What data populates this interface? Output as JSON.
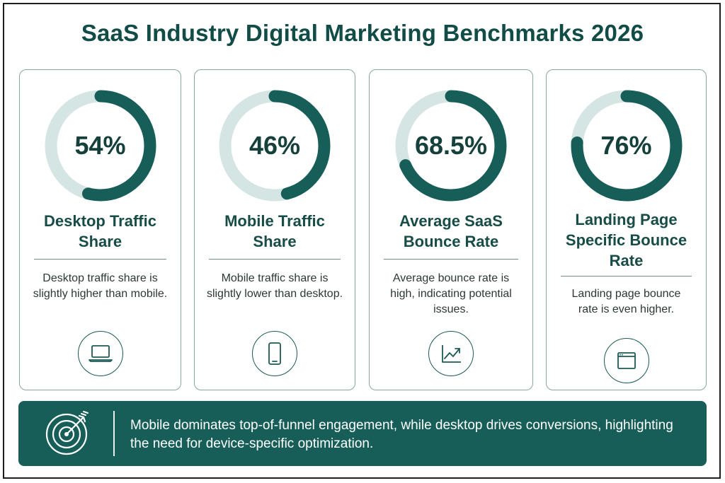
{
  "title": "SaaS Industry Digital Marketing Benchmarks 2026",
  "colors": {
    "accent": "#175e58",
    "track": "#d5e5e3",
    "text_dark": "#114c47"
  },
  "cards": [
    {
      "value_label": "54%",
      "fraction": 0.54,
      "label": "Desktop Traffic Share",
      "description": "Desktop traffic share is slightly higher than mobile.",
      "icon": "laptop-icon"
    },
    {
      "value_label": "46%",
      "fraction": 0.46,
      "label": "Mobile Traffic Share",
      "description": "Mobile traffic share is slightly lower than desktop.",
      "icon": "smartphone-icon"
    },
    {
      "value_label": "68.5%",
      "fraction": 0.685,
      "label": "Average SaaS Bounce Rate",
      "description": "Average bounce rate is high, indicating potential issues.",
      "icon": "trend-up-chart-icon"
    },
    {
      "value_label": "76%",
      "fraction": 0.76,
      "label": "Landing Page Specific Bounce Rate",
      "description": "Landing page bounce rate is even higher.",
      "icon": "browser-window-icon"
    }
  ],
  "banner": {
    "icon": "target-arrow-icon",
    "text": "Mobile dominates top-of-funnel engagement, while desktop drives conversions, highlighting the need for device-specific optimization."
  }
}
